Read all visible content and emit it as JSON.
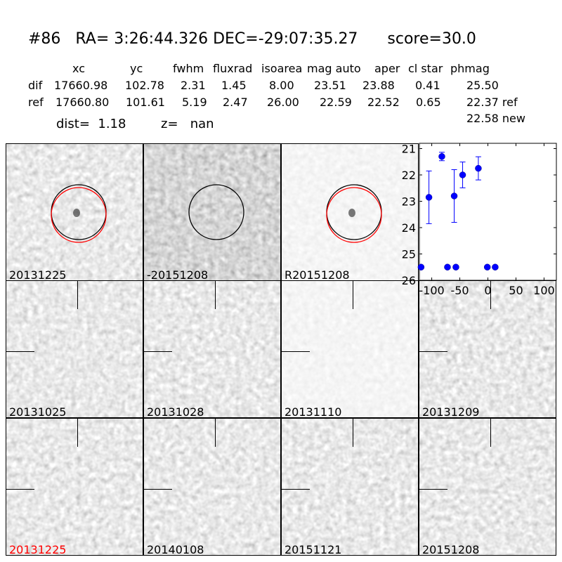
{
  "title": "#86   RA= 3:26:44.326 DEC=-29:07:35.27      score=30.0",
  "table": {
    "columns": [
      "xc",
      "yc",
      "fwhm",
      "fluxrad",
      "isoarea",
      "mag auto",
      "aper",
      "cl star",
      "phmag"
    ],
    "rows": [
      {
        "label": "dif",
        "values": [
          "17660.98",
          "102.78",
          "2.31",
          "1.45",
          "8.00",
          "23.51",
          "23.88",
          "0.41",
          "25.50"
        ]
      },
      {
        "label": "ref",
        "values": [
          "17660.80",
          "101.61",
          "5.19",
          "2.47",
          "26.00",
          "22.59",
          "22.52",
          "0.65",
          "22.37 ref"
        ]
      }
    ],
    "extra_phmag": "22.58 new",
    "dist": "dist=  1.18",
    "z": "z=   nan"
  },
  "stamps": [
    {
      "label": "20131225",
      "tone": "mid",
      "circles": [
        "black",
        "red"
      ]
    },
    {
      "label": "-20151208",
      "tone": "dark",
      "circles": [
        "black"
      ]
    },
    {
      "label": "R20151208",
      "tone": "light",
      "circles": [
        "black",
        "red"
      ]
    },
    {
      "label": "20131025",
      "tone": "mid",
      "crosshair": true
    },
    {
      "label": "20131028",
      "tone": "mid",
      "crosshair": true
    },
    {
      "label": "20131110",
      "tone": "light",
      "crosshair": true
    },
    {
      "label": "20131209",
      "tone": "mid",
      "crosshair": true
    },
    {
      "label": "20131225",
      "tone": "mid",
      "crosshair": true,
      "label_color": "#ff0000"
    },
    {
      "label": "20140108",
      "tone": "mid",
      "crosshair": true
    },
    {
      "label": "20151121",
      "tone": "mid",
      "crosshair": true
    },
    {
      "label": "20151208",
      "tone": "mid",
      "crosshair": true
    }
  ],
  "chart_data": {
    "type": "scatter",
    "title": "",
    "xlabel": "",
    "ylabel": "",
    "xlim": [
      -122,
      122
    ],
    "ylim": [
      26,
      20.8
    ],
    "y_inverted": true,
    "xticks": [
      -100,
      -50,
      0,
      50,
      100
    ],
    "yticks": [
      21,
      22,
      23,
      24,
      25,
      26
    ],
    "color": "#0000ff",
    "points": [
      {
        "x": -119,
        "y": 25.5,
        "err": 0
      },
      {
        "x": -105,
        "y": 22.85,
        "err": 1.0
      },
      {
        "x": -82,
        "y": 21.3,
        "err": 0.16
      },
      {
        "x": -72,
        "y": 25.5,
        "err": 0
      },
      {
        "x": -57,
        "y": 25.5,
        "err": 0
      },
      {
        "x": -60,
        "y": 22.8,
        "err": 1.0
      },
      {
        "x": -45,
        "y": 22.0,
        "err": 0.49
      },
      {
        "x": -17,
        "y": 21.75,
        "err": 0.44
      },
      {
        "x": -1,
        "y": 25.5,
        "err": 0
      },
      {
        "x": 13,
        "y": 25.5,
        "err": 0
      }
    ]
  }
}
